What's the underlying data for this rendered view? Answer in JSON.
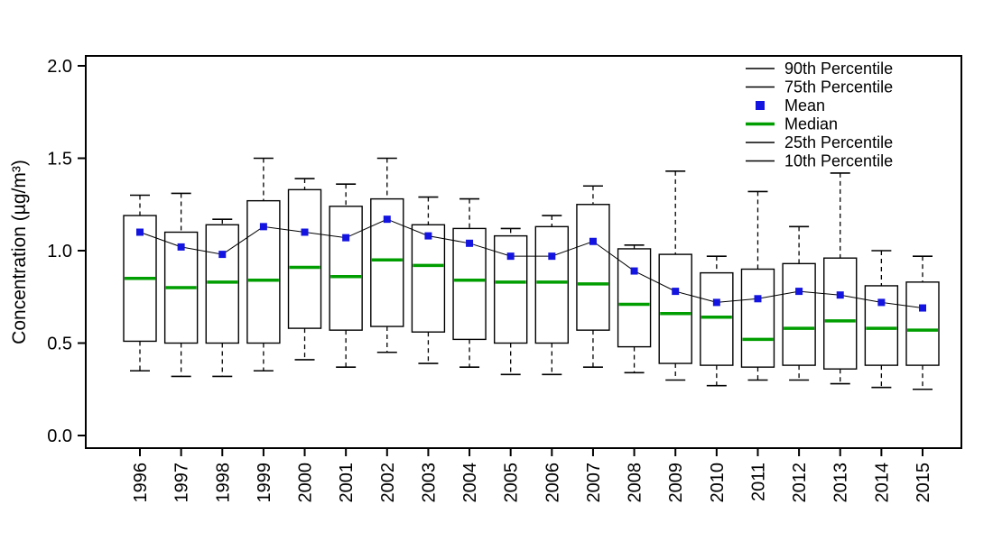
{
  "chart_data": {
    "type": "boxplot",
    "title": "",
    "ylabel": "Concentration (µg/m³)",
    "ylim": [
      0.0,
      2.0
    ],
    "yticks": [
      0.0,
      0.5,
      1.0,
      1.5,
      2.0
    ],
    "categories": [
      "1996",
      "1997",
      "1998",
      "1999",
      "2000",
      "2001",
      "2002",
      "2003",
      "2004",
      "2005",
      "2006",
      "2007",
      "2008",
      "2009",
      "2010",
      "2011",
      "2012",
      "2013",
      "2014",
      "2015"
    ],
    "series": {
      "p90": [
        1.3,
        1.31,
        1.17,
        1.5,
        1.39,
        1.36,
        1.5,
        1.29,
        1.28,
        1.12,
        1.19,
        1.35,
        1.03,
        1.43,
        0.97,
        1.32,
        1.13,
        1.42,
        1.0,
        0.97
      ],
      "p75": [
        1.19,
        1.1,
        1.14,
        1.27,
        1.33,
        1.24,
        1.28,
        1.14,
        1.12,
        1.08,
        1.13,
        1.25,
        1.01,
        0.98,
        0.88,
        0.9,
        0.93,
        0.96,
        0.81,
        0.83
      ],
      "mean": [
        1.1,
        1.02,
        0.98,
        1.13,
        1.1,
        1.07,
        1.17,
        1.08,
        1.04,
        0.97,
        0.97,
        1.05,
        0.89,
        0.78,
        0.72,
        0.74,
        0.78,
        0.76,
        0.72,
        0.69
      ],
      "median": [
        0.85,
        0.8,
        0.83,
        0.84,
        0.91,
        0.86,
        0.95,
        0.92,
        0.84,
        0.83,
        0.83,
        0.82,
        0.71,
        0.66,
        0.64,
        0.52,
        0.58,
        0.62,
        0.58,
        0.57
      ],
      "p25": [
        0.51,
        0.5,
        0.5,
        0.5,
        0.58,
        0.57,
        0.59,
        0.56,
        0.52,
        0.5,
        0.5,
        0.57,
        0.48,
        0.39,
        0.38,
        0.37,
        0.38,
        0.36,
        0.38,
        0.38
      ],
      "p10": [
        0.35,
        0.32,
        0.32,
        0.35,
        0.41,
        0.37,
        0.45,
        0.39,
        0.37,
        0.33,
        0.33,
        0.37,
        0.34,
        0.3,
        0.27,
        0.3,
        0.3,
        0.28,
        0.26,
        0.25
      ]
    },
    "legend": [
      {
        "label": "90th Percentile",
        "symbol": "line",
        "color": "#000000",
        "lw": 1.5
      },
      {
        "label": "75th Percentile",
        "symbol": "line",
        "color": "#000000",
        "lw": 1.5
      },
      {
        "label": "Mean",
        "symbol": "square",
        "color": "#1414e0",
        "lw": 1.5
      },
      {
        "label": "Median",
        "symbol": "line",
        "color": "#009e00",
        "lw": 3.5
      },
      {
        "label": "25th Percentile",
        "symbol": "line",
        "color": "#000000",
        "lw": 1.5
      },
      {
        "label": "10th Percentile",
        "symbol": "line",
        "color": "#000000",
        "lw": 1.5
      }
    ],
    "colors": {
      "mean": "#1414e0",
      "median": "#009e00",
      "box_stroke": "#000000",
      "background": "#ffffff"
    },
    "layout": {
      "legend_position": "top-right",
      "grid": false,
      "x_labels_rotated": true
    }
  }
}
